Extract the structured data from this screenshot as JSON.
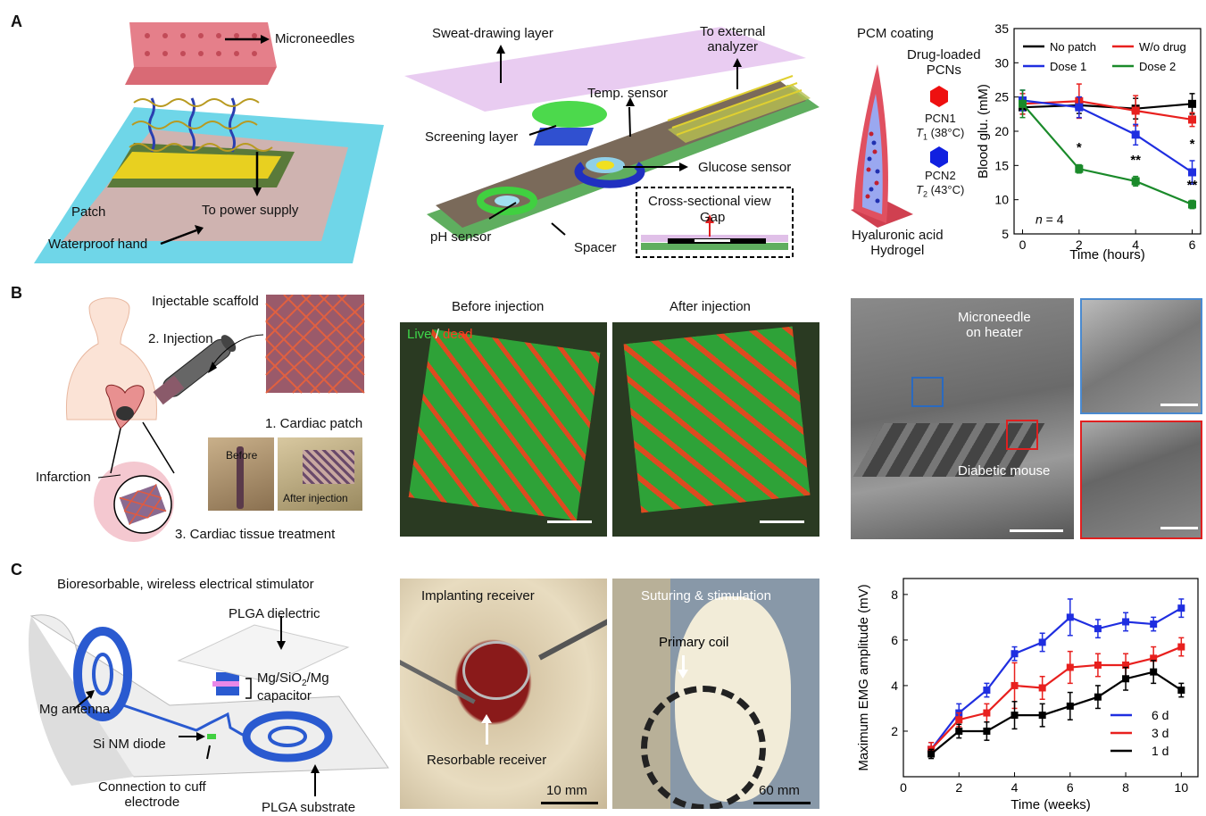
{
  "panels": {
    "a": "A",
    "b": "B",
    "c": "C"
  },
  "a1": {
    "microneedles": "Microneedles",
    "patch": "Patch",
    "power": "To power supply",
    "waterproof": "Waterproof hand"
  },
  "a2": {
    "sweat": "Sweat-drawing layer",
    "external": "To external\nanalyzer",
    "temp": "Temp. sensor",
    "screening": "Screening layer",
    "glucose": "Glucose sensor",
    "cross": "Cross-sectional view",
    "gap": "Gap",
    "ph": "pH sensor",
    "spacer": "Spacer"
  },
  "a3": {
    "pcm": "PCM coating",
    "drug": "Drug-loaded\nPCNs",
    "pcn1": "PCN1",
    "t1": "T",
    "t1sub": "1",
    "t1rest": " (38°C)",
    "pcn2": "PCN2",
    "t2": "T",
    "t2sub": "2",
    "t2rest": " (43°C)",
    "ha": "Hyaluronic acid\nHydrogel"
  },
  "b1": {
    "scaffold": "Injectable scaffold",
    "injection": "2. Injection",
    "cardiac_patch": "1. Cardiac patch",
    "infarction": "Infarction",
    "before": "Before",
    "after": "After injection",
    "treatment": "3. Cardiac tissue treatment"
  },
  "b2": {
    "before": "Before injection",
    "after": "After injection",
    "live": "Live",
    "slash": " / ",
    "dead": "dead"
  },
  "b3": {
    "microneedle": "Microneedle\non heater",
    "diabetic": "Diabetic mouse"
  },
  "c1": {
    "title": "Bioresorbable, wireless electrical stimulator",
    "plga_d": "PLGA dielectric",
    "cap_a": "Mg/SiO",
    "cap_sub": "2",
    "cap_b": "/Mg",
    "cap_c": "capacitor",
    "antenna": "Mg antenna",
    "diode": "Si NM diode",
    "connection": "Connection to cuff\nelectrode",
    "substrate": "PLGA substrate"
  },
  "c2": {
    "implanting": "Implanting receiver",
    "resorbable": "Resorbable receiver",
    "scale1": "10 mm",
    "suturing": "Suturing & stimulation",
    "coil": "Primary coil",
    "scale2": "60 mm"
  },
  "colors": {
    "black": "#000000",
    "red": "#e8201e",
    "blue": "#1f2ee0",
    "green": "#1a8a2a"
  },
  "chart_data": [
    {
      "type": "line",
      "xlabel": "Time (hours)",
      "ylabel": "Blood glu. (mM)",
      "x": [
        0,
        2,
        4,
        6
      ],
      "xlim": [
        -0.3,
        6.3
      ],
      "ylim": [
        5,
        35
      ],
      "xticks": [
        0,
        2,
        4,
        6
      ],
      "yticks": [
        5,
        10,
        15,
        20,
        25,
        30,
        35
      ],
      "annotation": "n = 4",
      "legend": "top",
      "series": [
        {
          "name": "No patch",
          "color": "#000000",
          "values": [
            23.5,
            23.8,
            23.3,
            24.0
          ],
          "err": [
            1.0,
            1.2,
            1.5,
            1.5
          ]
        },
        {
          "name": "W/o drug",
          "color": "#e8201e",
          "values": [
            24.0,
            24.4,
            23.0,
            21.7
          ],
          "err": [
            1.5,
            2.5,
            2.2,
            1.0
          ]
        },
        {
          "name": "Dose 1",
          "color": "#1f2ee0",
          "values": [
            24.5,
            23.5,
            19.5,
            14.0
          ],
          "err": [
            1.5,
            1.5,
            1.5,
            1.7
          ]
        },
        {
          "name": "Dose 2",
          "color": "#1a8a2a",
          "values": [
            24.0,
            14.5,
            12.7,
            9.3
          ],
          "err": [
            2.0,
            0.6,
            0.7,
            0.6
          ]
        }
      ],
      "significance": [
        {
          "x": 2,
          "label": "*"
        },
        {
          "x": 4,
          "label": "**"
        },
        {
          "x": 6,
          "label": "*"
        },
        {
          "x": 6,
          "label": "**"
        }
      ]
    },
    {
      "type": "line",
      "xlabel": "Time (weeks)",
      "ylabel": "Maximum EMG amplitude (mV)",
      "x": [
        1,
        2,
        3,
        4,
        5,
        6,
        7,
        8,
        9,
        10
      ],
      "xlim": [
        0,
        10.6
      ],
      "ylim": [
        0,
        8.7
      ],
      "xticks": [
        0,
        2,
        4,
        6,
        8,
        10
      ],
      "yticks": [
        2,
        4,
        6,
        8
      ],
      "legend": "bottom-right",
      "series": [
        {
          "name": "6 d",
          "color": "#1f2ee0",
          "values": [
            1.2,
            2.8,
            3.8,
            5.4,
            5.9,
            7.0,
            6.5,
            6.8,
            6.7,
            7.4
          ],
          "err": [
            0.3,
            0.4,
            0.3,
            0.3,
            0.4,
            0.8,
            0.4,
            0.4,
            0.3,
            0.4
          ]
        },
        {
          "name": "3 d",
          "color": "#e8201e",
          "values": [
            1.2,
            2.5,
            2.8,
            4.0,
            3.9,
            4.8,
            4.9,
            4.9,
            5.2,
            5.7
          ],
          "err": [
            0.3,
            0.3,
            0.4,
            1.0,
            0.5,
            0.7,
            0.5,
            0.5,
            0.5,
            0.4
          ]
        },
        {
          "name": "1 d",
          "color": "#000000",
          "values": [
            1.0,
            2.0,
            2.0,
            2.7,
            2.7,
            3.1,
            3.5,
            4.3,
            4.6,
            3.8
          ],
          "err": [
            0.2,
            0.3,
            0.4,
            0.6,
            0.5,
            0.6,
            0.5,
            0.5,
            0.5,
            0.3
          ]
        }
      ]
    }
  ]
}
